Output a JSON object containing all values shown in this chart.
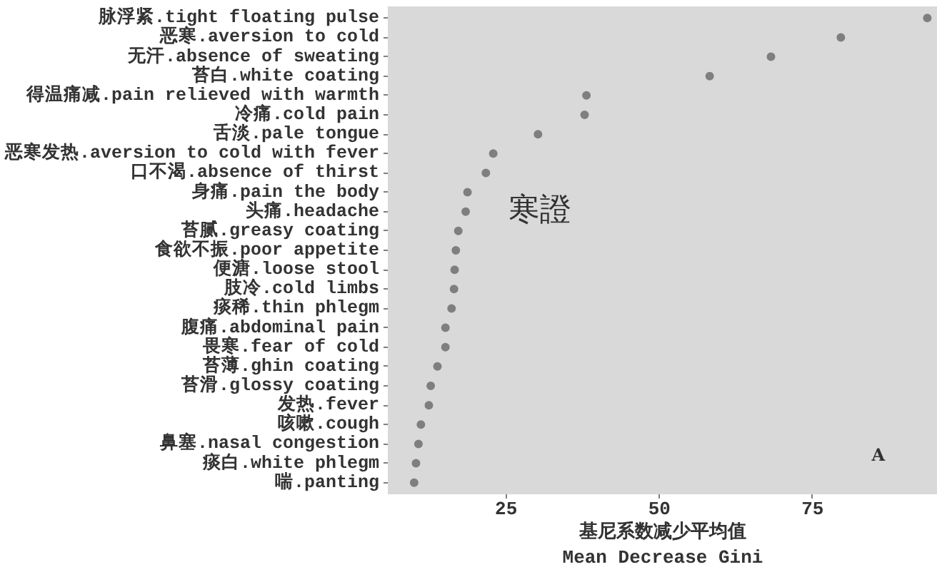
{
  "chart_data": {
    "type": "scatter",
    "xlabel": "基尼系数减少平均值\nMean Decrease Gini",
    "categories": [
      "脉浮紧.tight floating pulse",
      "恶寒.aversion to cold",
      "无汗.absence of sweating",
      "苔白.white coating",
      "得温痛减.pain relieved with warmth",
      "冷痛.cold pain",
      "舌淡.pale tongue",
      "恶寒发热.aversion to cold with fever",
      "口不渴.absence of thirst",
      "身痛.pain the body",
      "头痛.headache",
      "苔腻.greasy coating",
      "食欲不振.poor appetite",
      "便溏.loose stool",
      "肢冷.cold limbs",
      "痰稀.thin phlegm",
      "腹痛.abdominal pain",
      "畏寒.fear of cold",
      "苔薄.ghin coating",
      "苔滑.glossy coating",
      "发热.fever",
      "咳嗽.cough",
      "鼻塞.nasal congestion",
      "痰白.white phlegm",
      "喘.panting"
    ],
    "values": [
      93.7,
      79.6,
      68.2,
      58.2,
      38.1,
      37.8,
      30.2,
      22.9,
      21.7,
      18.7,
      18.4,
      17.2,
      16.8,
      16.6,
      16.5,
      16.1,
      15.1,
      15.1,
      13.8,
      12.7,
      12.4,
      11.1,
      10.7,
      10.3,
      10.0
    ],
    "color": "#7f7f7f",
    "marker": "circle",
    "orientation": "horizontal",
    "xlim": [
      5.7,
      95.4
    ],
    "xticks": [
      25,
      50,
      75
    ],
    "grid": false,
    "annotations": [
      "寒證",
      "A"
    ]
  }
}
